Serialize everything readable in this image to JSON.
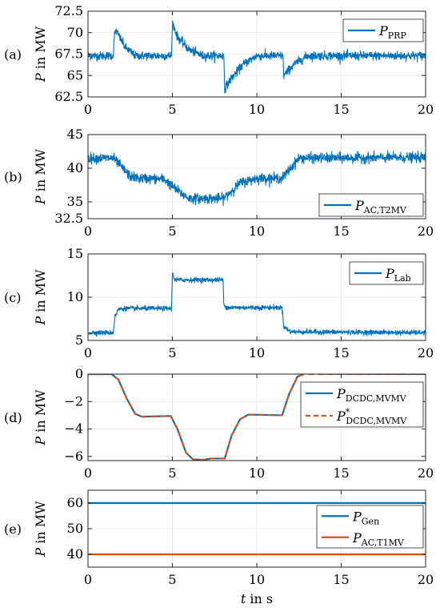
{
  "chart_data": [
    {
      "type": "line",
      "panel_label": "(a)",
      "ylabel": "P in MW",
      "xlim": [
        0,
        20
      ],
      "ylim": [
        62.5,
        72.5
      ],
      "x_ticks": [
        0,
        5,
        10,
        15,
        20
      ],
      "y_ticks": [
        62.5,
        65,
        67.5,
        70,
        72.5
      ],
      "x_tick_labels": [
        "0",
        "5",
        "10",
        "15",
        "20"
      ],
      "y_tick_labels": [
        "62.5",
        "65",
        "67.5",
        "70",
        "72.5"
      ],
      "grid": true,
      "noise": 0.55,
      "legend_position": "top-right",
      "series": [
        {
          "name_base": "P",
          "name_sub": "PRP",
          "name_sup": "",
          "color": "#0072BD",
          "dash": "",
          "points": [
            [
              0,
              67.3
            ],
            [
              1.5,
              67.3
            ],
            [
              1.55,
              69.5
            ],
            [
              1.65,
              70.3
            ],
            [
              2.2,
              68.3
            ],
            [
              2.8,
              67.3
            ],
            [
              4.95,
              67.3
            ],
            [
              5.0,
              71.2
            ],
            [
              5.3,
              69.5
            ],
            [
              6.0,
              68.0
            ],
            [
              6.8,
              67.3
            ],
            [
              8.05,
              67.3
            ],
            [
              8.1,
              63.5
            ],
            [
              8.5,
              64.7
            ],
            [
              9.2,
              66.3
            ],
            [
              10.0,
              67.3
            ],
            [
              11.55,
              67.3
            ],
            [
              11.6,
              65.0
            ],
            [
              12.2,
              66.3
            ],
            [
              13.0,
              67.3
            ],
            [
              20,
              67.3
            ]
          ]
        }
      ]
    },
    {
      "type": "line",
      "panel_label": "(b)",
      "ylabel": "P in MW",
      "xlim": [
        0,
        20
      ],
      "ylim": [
        32.5,
        45
      ],
      "x_ticks": [
        0,
        5,
        10,
        15,
        20
      ],
      "y_ticks": [
        32.5,
        35,
        40,
        45
      ],
      "x_tick_labels": [
        "0",
        "5",
        "10",
        "15",
        "20"
      ],
      "y_tick_labels": [
        "32.5",
        "35",
        "40",
        "45"
      ],
      "grid": true,
      "noise": 0.8,
      "legend_position": "bottom-right",
      "series": [
        {
          "name_base": "P",
          "name_sub": "AC,T2MV",
          "name_sup": "",
          "color": "#0072BD",
          "dash": "",
          "points": [
            [
              0,
              41.5
            ],
            [
              1.5,
              41.5
            ],
            [
              2.5,
              38.8
            ],
            [
              3.0,
              38.5
            ],
            [
              4.5,
              38.4
            ],
            [
              5.0,
              37.3
            ],
            [
              5.5,
              36.3
            ],
            [
              6.0,
              35.5
            ],
            [
              8.0,
              35.5
            ],
            [
              8.5,
              36.6
            ],
            [
              9.0,
              37.8
            ],
            [
              10.0,
              38.5
            ],
            [
              11.5,
              38.5
            ],
            [
              12.5,
              41.5
            ],
            [
              20,
              41.6
            ]
          ]
        }
      ]
    },
    {
      "type": "line",
      "panel_label": "(c)",
      "ylabel": "P in MW",
      "xlim": [
        0,
        20
      ],
      "ylim": [
        5,
        15
      ],
      "x_ticks": [
        0,
        5,
        10,
        15,
        20
      ],
      "y_ticks": [
        5,
        10,
        15
      ],
      "x_tick_labels": [
        "0",
        "5",
        "10",
        "15",
        "20"
      ],
      "y_tick_labels": [
        "5",
        "10",
        "15"
      ],
      "grid": true,
      "noise": 0.3,
      "legend_position": "top-right",
      "series": [
        {
          "name_base": "P",
          "name_sub": "Lab",
          "name_sup": "",
          "color": "#0072BD",
          "dash": "",
          "points": [
            [
              0,
              5.9
            ],
            [
              1.5,
              5.9
            ],
            [
              1.6,
              7.8
            ],
            [
              1.8,
              8.6
            ],
            [
              2.2,
              8.7
            ],
            [
              4.95,
              8.7
            ],
            [
              5.0,
              12.8
            ],
            [
              5.15,
              12.0
            ],
            [
              8.0,
              12.0
            ],
            [
              8.05,
              9.0
            ],
            [
              8.3,
              8.8
            ],
            [
              11.5,
              8.8
            ],
            [
              11.6,
              6.6
            ],
            [
              12.0,
              6.0
            ],
            [
              20,
              5.9
            ]
          ]
        }
      ]
    },
    {
      "type": "line",
      "panel_label": "(d)",
      "ylabel": "P in MW",
      "xlim": [
        0,
        20
      ],
      "ylim": [
        -6.3,
        0
      ],
      "x_ticks": [
        0,
        5,
        10,
        15,
        20
      ],
      "y_ticks": [
        -6,
        -4,
        -2,
        0
      ],
      "x_tick_labels": [
        "0",
        "5",
        "10",
        "15",
        "20"
      ],
      "y_tick_labels": [
        "−6",
        "−4",
        "−2",
        "0"
      ],
      "grid": true,
      "noise": 0,
      "legend_position": "top-right",
      "series": [
        {
          "name_base": "P",
          "name_sub": "DCDC,MVMV",
          "name_sup": "",
          "color": "#0072BD",
          "dash": "",
          "points": [
            [
              0,
              0
            ],
            [
              1.4,
              0
            ],
            [
              1.8,
              -0.4
            ],
            [
              2.3,
              -1.8
            ],
            [
              2.8,
              -2.9
            ],
            [
              3.2,
              -3.1
            ],
            [
              4.9,
              -3.05
            ],
            [
              5.3,
              -4.0
            ],
            [
              5.8,
              -5.7
            ],
            [
              6.2,
              -6.2
            ],
            [
              6.8,
              -6.25
            ],
            [
              7.3,
              -6.15
            ],
            [
              8.1,
              -6.15
            ],
            [
              8.5,
              -4.5
            ],
            [
              9.0,
              -3.3
            ],
            [
              9.5,
              -2.95
            ],
            [
              11.5,
              -3.0
            ],
            [
              11.9,
              -1.5
            ],
            [
              12.4,
              -0.2
            ],
            [
              12.8,
              0.05
            ],
            [
              13.2,
              0.08
            ],
            [
              14.0,
              0.02
            ],
            [
              20,
              0
            ]
          ]
        },
        {
          "name_base": "P",
          "name_sub": "DCDC,MVMV",
          "name_sup": "*",
          "color": "#D95319",
          "dash": "7 5",
          "points": [
            [
              0,
              0
            ],
            [
              1.4,
              0
            ],
            [
              1.8,
              -0.4
            ],
            [
              2.3,
              -1.8
            ],
            [
              2.8,
              -2.9
            ],
            [
              3.2,
              -3.1
            ],
            [
              4.9,
              -3.05
            ],
            [
              5.3,
              -4.0
            ],
            [
              5.8,
              -5.7
            ],
            [
              6.2,
              -6.2
            ],
            [
              6.8,
              -6.25
            ],
            [
              7.3,
              -6.15
            ],
            [
              8.1,
              -6.15
            ],
            [
              8.5,
              -4.5
            ],
            [
              9.0,
              -3.3
            ],
            [
              9.5,
              -2.95
            ],
            [
              11.5,
              -3.0
            ],
            [
              11.9,
              -1.5
            ],
            [
              12.4,
              -0.2
            ],
            [
              12.8,
              0.0
            ],
            [
              20,
              0
            ]
          ]
        }
      ]
    },
    {
      "type": "line",
      "panel_label": "(e)",
      "ylabel": "P in MW",
      "xlabel": "t in s",
      "xlim": [
        0,
        20
      ],
      "ylim": [
        35,
        65
      ],
      "x_ticks": [
        0,
        5,
        10,
        15,
        20
      ],
      "y_ticks": [
        40,
        50,
        60
      ],
      "x_tick_labels": [
        "0",
        "5",
        "10",
        "15",
        "20"
      ],
      "y_tick_labels": [
        "40",
        "50",
        "60"
      ],
      "grid": true,
      "noise": 0,
      "legend_position": "right",
      "series": [
        {
          "name_base": "P",
          "name_sub": "Gen",
          "name_sup": "",
          "color": "#0072BD",
          "dash": "",
          "points": [
            [
              0,
              60
            ],
            [
              20,
              60
            ]
          ]
        },
        {
          "name_base": "P",
          "name_sub": "AC,T1MV",
          "name_sup": "",
          "color": "#D95319",
          "dash": "",
          "points": [
            [
              0,
              40
            ],
            [
              20,
              40
            ]
          ]
        }
      ]
    }
  ]
}
